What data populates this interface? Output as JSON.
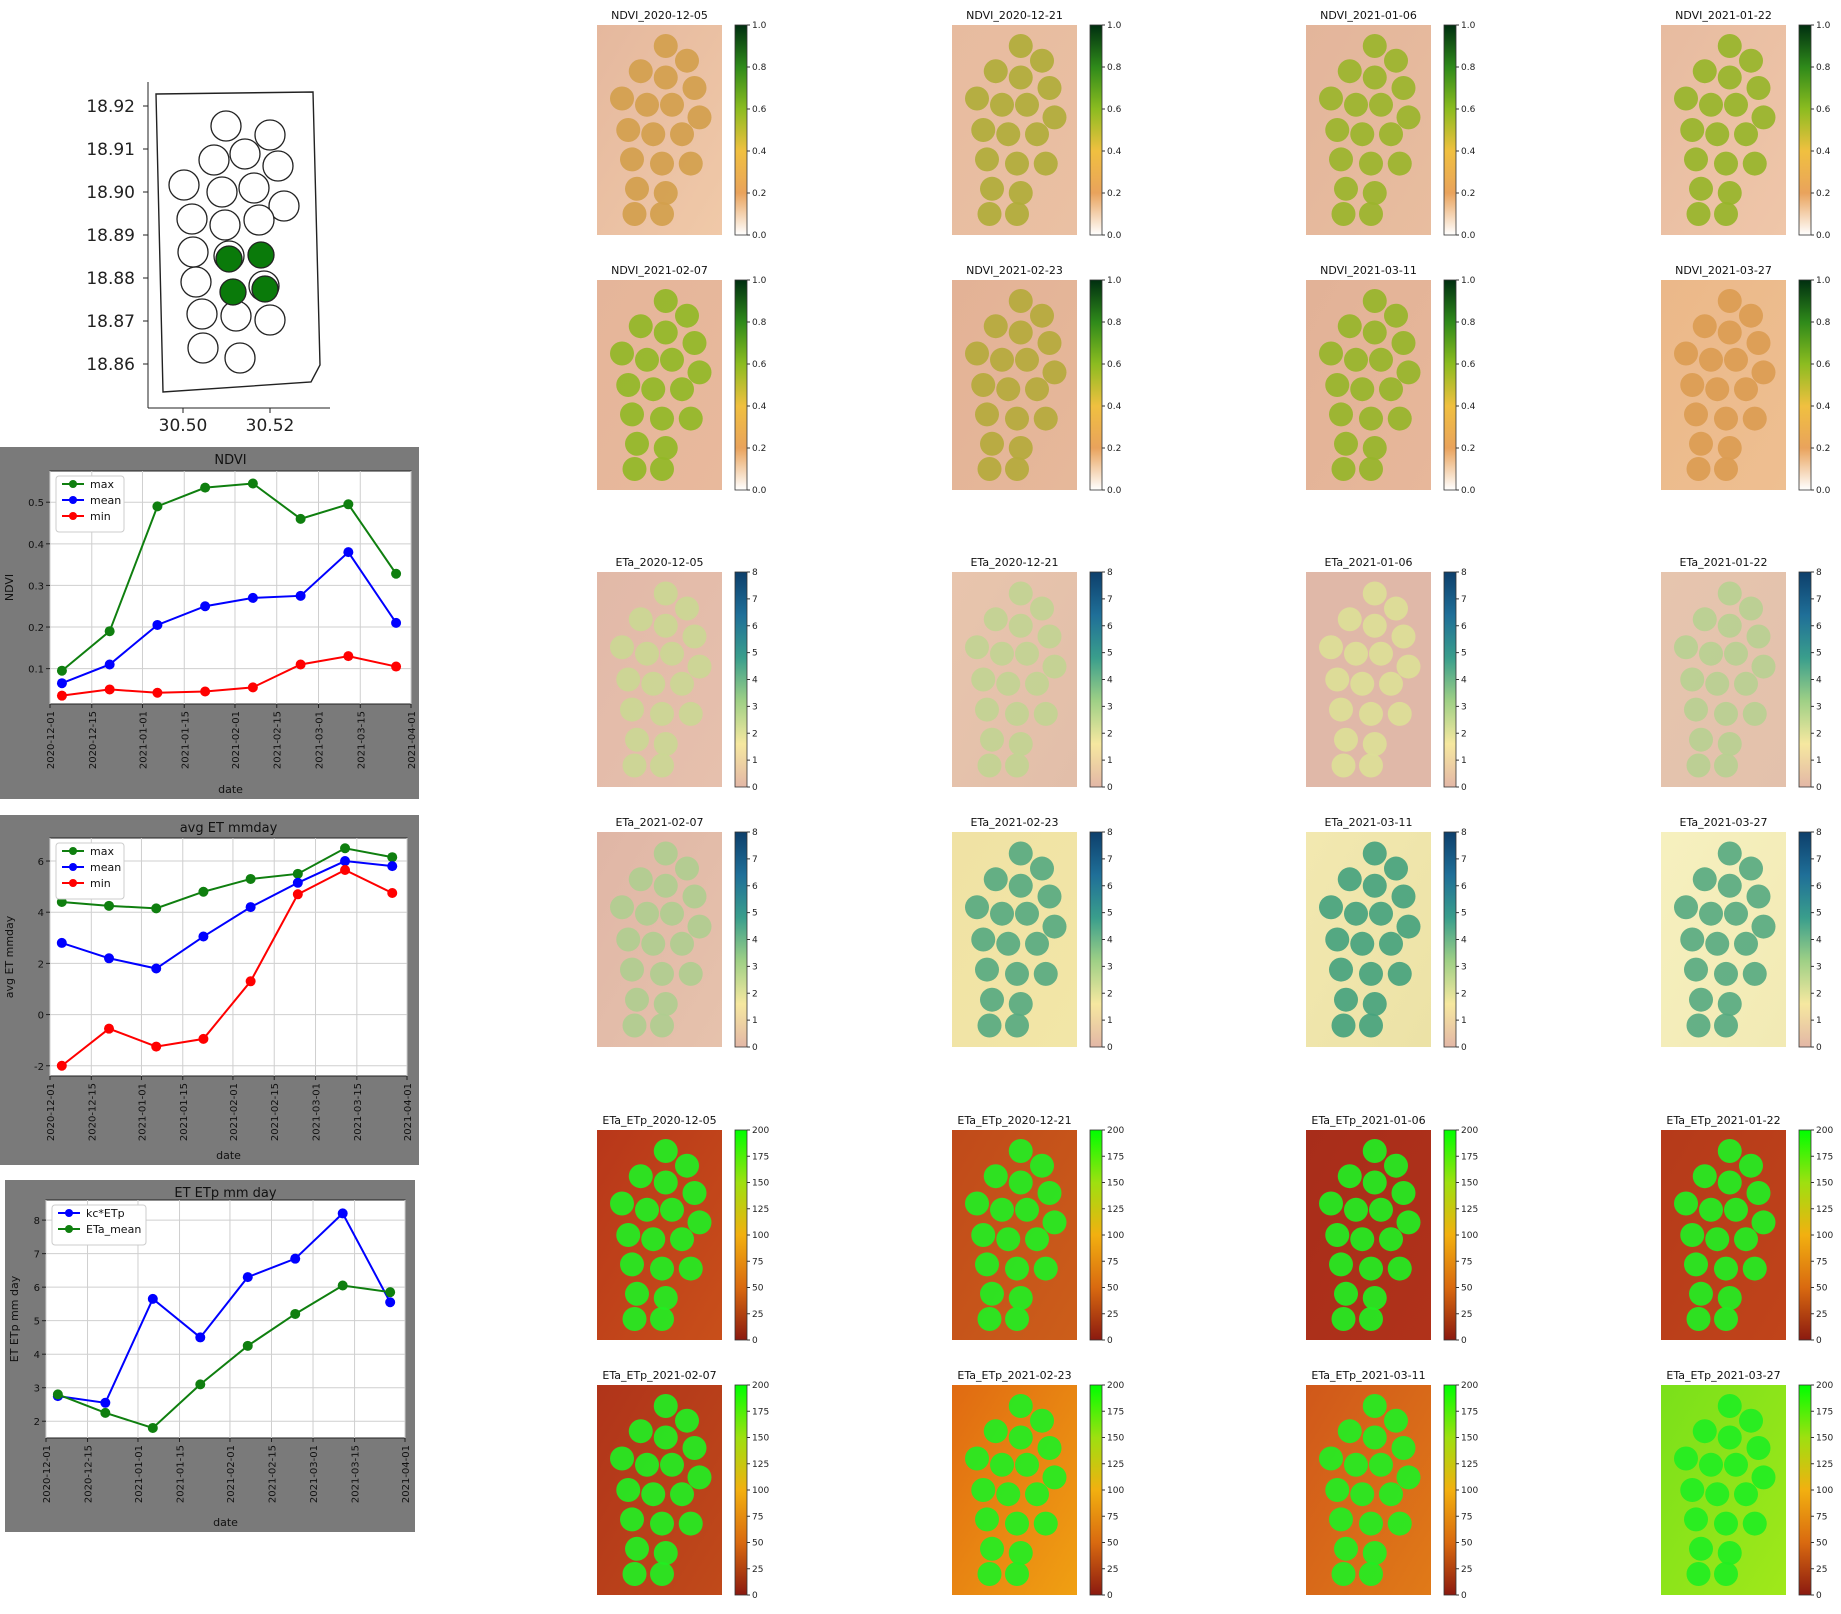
{
  "location_map": {
    "y_ticks": [
      "18.92",
      "18.91",
      "18.90",
      "18.89",
      "18.88",
      "18.87",
      "18.86"
    ],
    "x_ticks": [
      "30.50",
      "30.52"
    ],
    "highlight_color": "#0a7a0a"
  },
  "dates": [
    "2020-12-05",
    "2020-12-21",
    "2021-01-06",
    "2021-01-22",
    "2021-02-07",
    "2021-02-23",
    "2021-03-11",
    "2021-03-27"
  ],
  "map_grids": [
    {
      "prefix": "NDVI_",
      "colorbar_ticks": [
        "0.0",
        "0.2",
        "0.4",
        "0.6",
        "0.8",
        "1.0"
      ],
      "colorbar_colors": [
        "#ffffff",
        "#e9a35c",
        "#f0c040",
        "#8cbc20",
        "#2f8a1a",
        "#002f10"
      ]
    },
    {
      "prefix": "ETa_",
      "colorbar_ticks": [
        "0",
        "1",
        "2",
        "3",
        "4",
        "5",
        "6",
        "7",
        "8"
      ],
      "colorbar_colors": [
        "#e3b7a6",
        "#f6e8a0",
        "#9fd086",
        "#3a9e8c",
        "#1f6f98",
        "#0d3f6b"
      ]
    },
    {
      "prefix": "ETa_ETp_",
      "colorbar_ticks": [
        "0",
        "25",
        "50",
        "75",
        "100",
        "125",
        "150",
        "175",
        "200"
      ],
      "colorbar_colors": [
        "#8b1a10",
        "#d96a10",
        "#f2b010",
        "#9ee010",
        "#00ff00"
      ]
    }
  ],
  "chart_data": [
    {
      "type": "line",
      "title": "NDVI",
      "xlabel": "date",
      "ylabel": "NDVI",
      "x": [
        "2020-12-05",
        "2020-12-21",
        "2021-01-06",
        "2021-01-22",
        "2021-02-07",
        "2021-02-23",
        "2021-03-11",
        "2021-03-27"
      ],
      "x_ticks": [
        "2020-12-01",
        "2020-12-15",
        "2021-01-01",
        "2021-01-15",
        "2021-02-01",
        "2021-02-15",
        "2021-03-01",
        "2021-03-15",
        "2021-04-01"
      ],
      "y_ticks": [
        0.1,
        0.2,
        0.3,
        0.4,
        0.5
      ],
      "ylim": [
        0.015,
        0.575
      ],
      "grid": true,
      "legend": "top-left",
      "series": [
        {
          "name": "max",
          "color": "#0f7f0f",
          "values": [
            0.095,
            0.19,
            0.49,
            0.535,
            0.545,
            0.46,
            0.495,
            0.328
          ]
        },
        {
          "name": "mean",
          "color": "#0000ff",
          "values": [
            0.065,
            0.11,
            0.205,
            0.25,
            0.27,
            0.275,
            0.38,
            0.21
          ]
        },
        {
          "name": "min",
          "color": "#ff0000",
          "values": [
            0.035,
            0.05,
            0.042,
            0.045,
            0.055,
            0.11,
            0.13,
            0.105
          ]
        }
      ]
    },
    {
      "type": "line",
      "title": "avg ET mmday",
      "xlabel": "date",
      "ylabel": "avg ET mmday",
      "x": [
        "2020-12-05",
        "2020-12-21",
        "2021-01-06",
        "2021-01-22",
        "2021-02-07",
        "2021-02-23",
        "2021-03-11",
        "2021-03-27"
      ],
      "x_ticks": [
        "2020-12-01",
        "2020-12-15",
        "2021-01-01",
        "2021-01-15",
        "2021-02-01",
        "2021-02-15",
        "2021-03-01",
        "2021-03-15",
        "2021-04-01"
      ],
      "y_ticks": [
        -2,
        0,
        2,
        4,
        6
      ],
      "ylim": [
        -2.4,
        6.9
      ],
      "grid": true,
      "legend": "top-left",
      "series": [
        {
          "name": "max",
          "color": "#0f7f0f",
          "values": [
            4.4,
            4.25,
            4.15,
            4.8,
            5.3,
            5.5,
            6.5,
            6.15
          ]
        },
        {
          "name": "mean",
          "color": "#0000ff",
          "values": [
            2.8,
            2.2,
            1.8,
            3.05,
            4.2,
            5.15,
            6.0,
            5.8
          ]
        },
        {
          "name": "min",
          "color": "#ff0000",
          "values": [
            -2.0,
            -0.55,
            -1.25,
            -0.95,
            1.3,
            4.7,
            5.65,
            4.75
          ]
        }
      ]
    },
    {
      "type": "line",
      "title": "ET ETp mm day",
      "xlabel": "date",
      "ylabel": "ET ETp mm day",
      "x": [
        "2020-12-05",
        "2020-12-21",
        "2021-01-06",
        "2021-01-22",
        "2021-02-07",
        "2021-02-23",
        "2021-03-11",
        "2021-03-27"
      ],
      "x_ticks": [
        "2020-12-01",
        "2020-12-15",
        "2021-01-01",
        "2021-01-15",
        "2021-02-01",
        "2021-02-15",
        "2021-03-01",
        "2021-03-15",
        "2021-04-01"
      ],
      "y_ticks": [
        2,
        3,
        4,
        5,
        6,
        7,
        8
      ],
      "ylim": [
        1.5,
        8.6
      ],
      "grid": true,
      "legend": "top-left",
      "series": [
        {
          "name": "kc*ETp",
          "color": "#0000ff",
          "values": [
            2.75,
            2.55,
            5.65,
            4.5,
            6.3,
            6.85,
            8.2,
            5.55
          ]
        },
        {
          "name": "ETa_mean",
          "color": "#0f7f0f",
          "values": [
            2.8,
            2.25,
            1.8,
            3.1,
            4.25,
            5.2,
            6.05,
            5.85
          ]
        }
      ]
    }
  ]
}
